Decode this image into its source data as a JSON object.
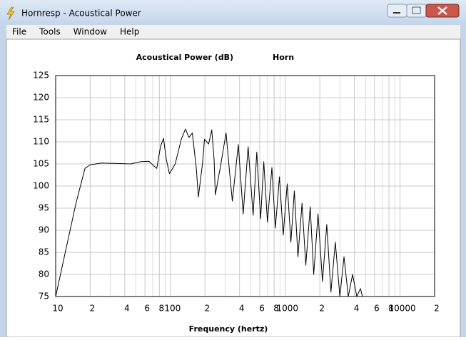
{
  "window": {
    "title": "Hornresp - Acoustical Power",
    "menu": [
      "File",
      "Tools",
      "Window",
      "Help"
    ]
  },
  "chart_data": {
    "type": "line",
    "title": "Acoustical Power (dB)",
    "subtitle": "Horn",
    "xlabel": "Frequency (hertz)",
    "xscale": "log",
    "grid": true,
    "color": "#000000",
    "xlim": [
      10,
      20000
    ],
    "ylim": [
      75,
      125
    ],
    "yticks": [
      75,
      80,
      85,
      90,
      95,
      100,
      105,
      110,
      115,
      120,
      125
    ],
    "xticks": [
      10,
      {
        "value": 20,
        "label": "2"
      },
      {
        "value": 40,
        "label": "4"
      },
      {
        "value": 60,
        "label": "6"
      },
      {
        "value": 80,
        "label": "8"
      },
      100,
      {
        "value": 200,
        "label": "2"
      },
      {
        "value": 400,
        "label": "4"
      },
      {
        "value": 600,
        "label": "6"
      },
      {
        "value": 800,
        "label": "8"
      },
      1000,
      {
        "value": 2000,
        "label": "2"
      },
      {
        "value": 4000,
        "label": "4"
      },
      {
        "value": 6000,
        "label": "6"
      },
      {
        "value": 8000,
        "label": "8"
      },
      10000,
      {
        "value": 20000,
        "label": "2"
      }
    ],
    "xminorticks": [
      30,
      50,
      70,
      90,
      300,
      500,
      700,
      900,
      3000,
      5000,
      7000,
      9000
    ],
    "x": [
      10,
      15,
      18,
      20,
      25,
      35,
      45,
      55,
      65,
      72,
      76,
      82,
      87,
      92,
      98,
      110,
      124,
      135,
      145,
      155,
      168,
      175,
      190,
      198,
      215,
      229,
      240,
      246,
      275,
      305,
      325,
      346,
      390,
      430,
      475,
      525,
      565,
      610,
      650,
      700,
      765,
      820,
      890,
      960,
      1040,
      1120,
      1200,
      1290,
      1400,
      1510,
      1650,
      1770,
      1930,
      2110,
      2300,
      2500,
      2730,
      2990,
      3250,
      3540,
      3860,
      4200,
      4520,
      4700
    ],
    "values": [
      75,
      96,
      104,
      104.8,
      105.2,
      105.1,
      105,
      105.5,
      105.6,
      104.5,
      104,
      109,
      110.8,
      106,
      102.8,
      105,
      110.5,
      112.9,
      111,
      112,
      104,
      97.5,
      105,
      110.6,
      109.5,
      112.7,
      106,
      98,
      105,
      112,
      104,
      96.6,
      109.4,
      93.7,
      108.9,
      93.4,
      107.7,
      92.6,
      105.5,
      91.8,
      104.2,
      90.5,
      102.1,
      88.9,
      100.5,
      87.3,
      98.9,
      84,
      96.1,
      82.1,
      95.3,
      80,
      93.7,
      78.4,
      91.3,
      76,
      87.3,
      75,
      84,
      75,
      80,
      75,
      76.8,
      75
    ]
  }
}
